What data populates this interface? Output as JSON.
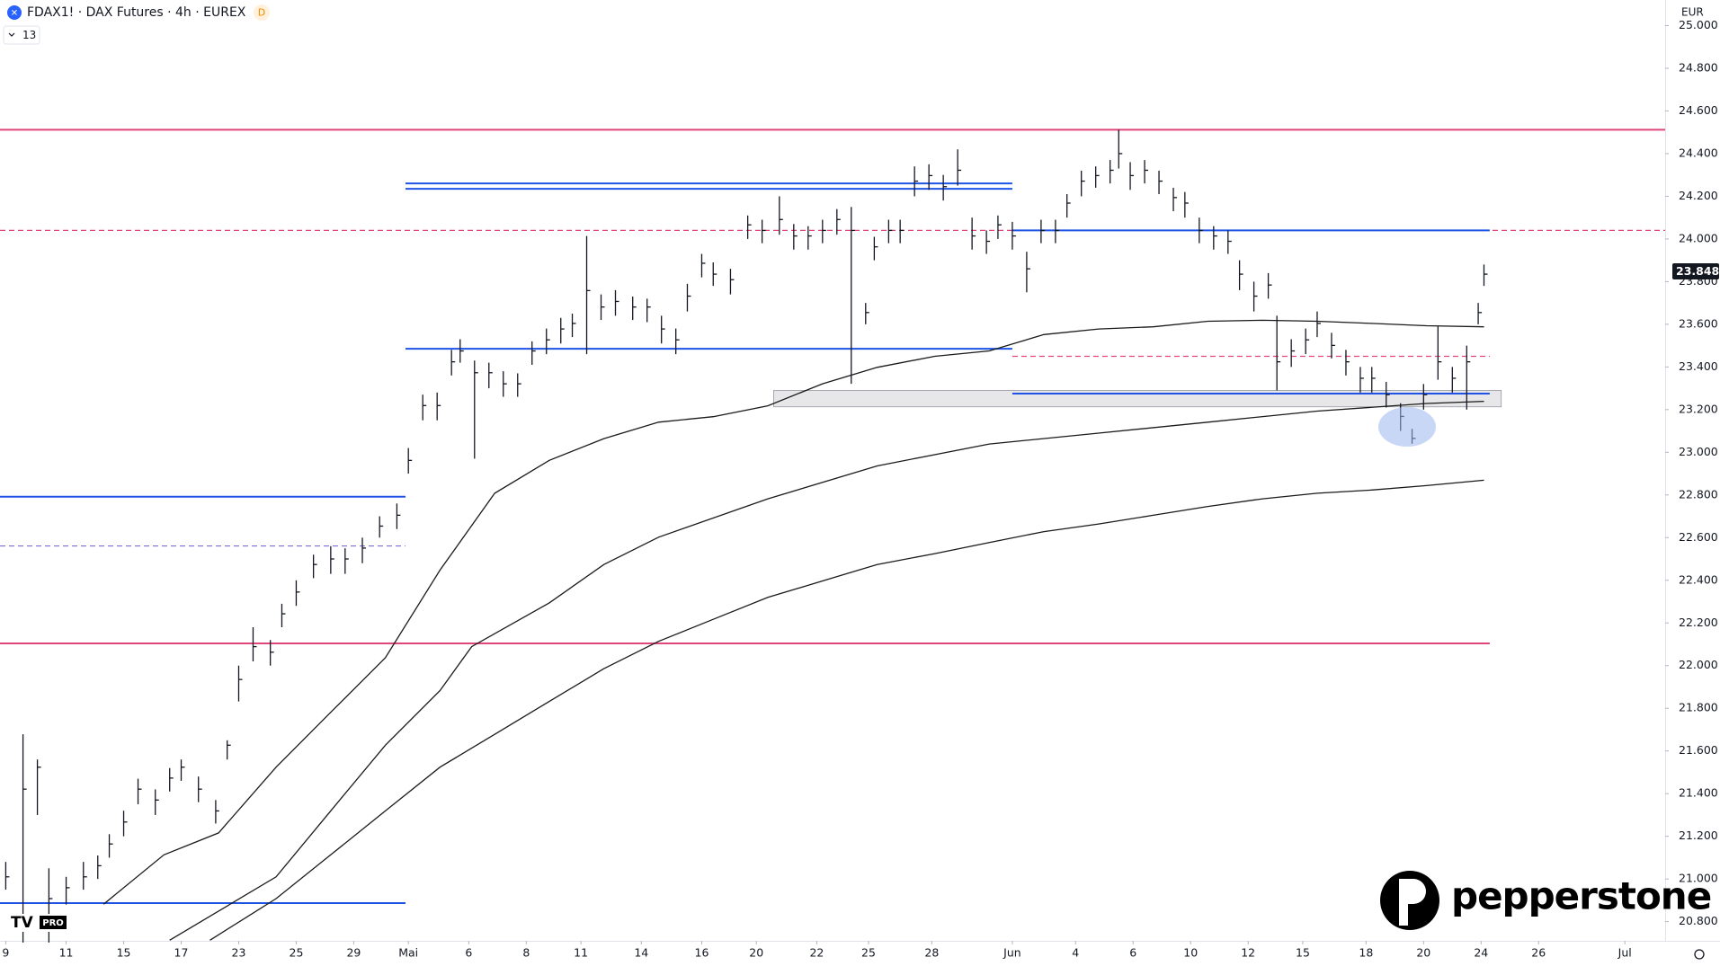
{
  "chart_data": {
    "type": "ohlc",
    "title": "FDAX1! · DAX Futures · 4h · EUREX",
    "interval_badge": "D",
    "indicator_count": 13,
    "currency": "EUR",
    "watermark": "pepperstone",
    "badge": "PRO",
    "grid": false,
    "last_price": {
      "value": 23848,
      "label": "23.848"
    },
    "ylim": [
      20710,
      25120
    ],
    "yticks": [
      {
        "value": 20800,
        "label": "20.800"
      },
      {
        "value": 21000,
        "label": "21.000"
      },
      {
        "value": 21200,
        "label": "21.200"
      },
      {
        "value": 21400,
        "label": "21.400"
      },
      {
        "value": 21600,
        "label": "21.600"
      },
      {
        "value": 21800,
        "label": "21.800"
      },
      {
        "value": 22000,
        "label": "22.000"
      },
      {
        "value": 22200,
        "label": "22.200"
      },
      {
        "value": 22400,
        "label": "22.400"
      },
      {
        "value": 22600,
        "label": "22.600"
      },
      {
        "value": 22800,
        "label": "22.800"
      },
      {
        "value": 23000,
        "label": "23.000"
      },
      {
        "value": 23200,
        "label": "23.200"
      },
      {
        "value": 23400,
        "label": "23.400"
      },
      {
        "value": 23600,
        "label": "23.600"
      },
      {
        "value": 23800,
        "label": "23.800"
      },
      {
        "value": 24000,
        "label": "24.000"
      },
      {
        "value": 24200,
        "label": "24.200"
      },
      {
        "value": 24400,
        "label": "24.400"
      },
      {
        "value": 24600,
        "label": "24.600"
      },
      {
        "value": 24800,
        "label": "24.800"
      },
      {
        "value": 25000,
        "label": "25.000"
      }
    ],
    "xlim": [
      -0.2,
      57.7
    ],
    "xticks": [
      {
        "value": 0,
        "label": "9"
      },
      {
        "value": 2.1,
        "label": "11"
      },
      {
        "value": 4.1,
        "label": "15"
      },
      {
        "value": 6.1,
        "label": "17"
      },
      {
        "value": 8.1,
        "label": "23"
      },
      {
        "value": 10.1,
        "label": "25"
      },
      {
        "value": 12.1,
        "label": "29"
      },
      {
        "value": 14,
        "label": "Mai"
      },
      {
        "value": 16.1,
        "label": "6"
      },
      {
        "value": 18.1,
        "label": "8"
      },
      {
        "value": 20,
        "label": "11"
      },
      {
        "value": 22.1,
        "label": "14"
      },
      {
        "value": 24.2,
        "label": "16"
      },
      {
        "value": 26.1,
        "label": "20"
      },
      {
        "value": 28.2,
        "label": "22"
      },
      {
        "value": 30,
        "label": "25"
      },
      {
        "value": 32.2,
        "label": "28"
      },
      {
        "value": 35,
        "label": "Jun"
      },
      {
        "value": 37.2,
        "label": "4"
      },
      {
        "value": 39.2,
        "label": "6"
      },
      {
        "value": 41.2,
        "label": "10"
      },
      {
        "value": 43.2,
        "label": "12"
      },
      {
        "value": 45.1,
        "label": "15"
      },
      {
        "value": 47.3,
        "label": "18"
      },
      {
        "value": 49.3,
        "label": "20"
      },
      {
        "value": 51.3,
        "label": "24"
      },
      {
        "value": 53.3,
        "label": "26"
      },
      {
        "value": 56.3,
        "label": "Jul"
      }
    ],
    "color": "#131722",
    "x": [
      0,
      0.6,
      1.1,
      1.5,
      2.1,
      2.7,
      3.2,
      3.6,
      4.1,
      4.6,
      5.2,
      5.7,
      6.1,
      6.7,
      7.3,
      7.7,
      8.1,
      8.6,
      9.2,
      9.6,
      10.1,
      10.7,
      11.3,
      11.8,
      12.4,
      13,
      13.6,
      14,
      14.5,
      15,
      15.5,
      15.8,
      16.3,
      16.8,
      17.3,
      17.8,
      18.3,
      18.8,
      19.3,
      19.7,
      20.2,
      20.7,
      21.2,
      21.8,
      22.3,
      22.8,
      23.3,
      23.7,
      24.2,
      24.6,
      25.2,
      25.8,
      26.3,
      26.9,
      27.4,
      27.9,
      28.4,
      28.9,
      29.4,
      29.9,
      30.2,
      30.7,
      31.1,
      31.6,
      32.1,
      32.6,
      33.1,
      33.6,
      34.1,
      34.5,
      35,
      35.5,
      36,
      36.5,
      36.9,
      37.4,
      37.9,
      38.4,
      38.7,
      39.1,
      39.6,
      40.1,
      40.6,
      41,
      41.5,
      42,
      42.5,
      42.9,
      43.4,
      43.9,
      44.2,
      44.7,
      45.2,
      45.6,
      46.1,
      46.6,
      47.1,
      47.5,
      48,
      48.5,
      48.9,
      49.3,
      49.8,
      50.3,
      50.8,
      51.2,
      51.4
    ],
    "high": [
      21080,
      21678,
      21560,
      21050,
      21010,
      21080,
      21110,
      21210,
      21320,
      21470,
      21420,
      21520,
      21560,
      21480,
      21370,
      21650,
      22000,
      22180,
      22120,
      22290,
      22400,
      22520,
      22560,
      22550,
      22600,
      22700,
      22760,
      23020,
      23270,
      23280,
      23480,
      23530,
      23430,
      23420,
      23380,
      23370,
      23520,
      23580,
      23630,
      23650,
      24014,
      23740,
      23760,
      23730,
      23720,
      23640,
      23580,
      23790,
      23930,
      23890,
      23860,
      24110,
      24090,
      24200,
      24070,
      24060,
      24090,
      24140,
      24150,
      23700,
      24010,
      24090,
      24090,
      24340,
      24350,
      24300,
      24420,
      24100,
      24040,
      24110,
      24080,
      23940,
      24090,
      24090,
      24210,
      24320,
      24340,
      24370,
      24512,
      24360,
      24370,
      24320,
      24240,
      24220,
      24100,
      24060,
      24040,
      23900,
      23800,
      23840,
      23640,
      23530,
      23580,
      23660,
      23560,
      23480,
      23400,
      23400,
      23330,
      23230,
      23110,
      23320,
      23590,
      23400,
      23500,
      23700,
      23880
    ],
    "low": [
      20950,
      20702,
      21300,
      20702,
      20880,
      20950,
      21000,
      21100,
      21200,
      21350,
      21300,
      21410,
      21460,
      21360,
      21260,
      21560,
      21832,
      22020,
      22000,
      22180,
      22280,
      22410,
      22430,
      22430,
      22480,
      22600,
      22640,
      22900,
      23150,
      23150,
      23360,
      23420,
      22970,
      23300,
      23260,
      23260,
      23410,
      23460,
      23510,
      23540,
      23460,
      23620,
      23640,
      23620,
      23610,
      23510,
      23460,
      23660,
      23820,
      23780,
      23740,
      24000,
      23980,
      24020,
      23950,
      23950,
      23980,
      24020,
      23321,
      23600,
      23900,
      23980,
      23980,
      24200,
      24230,
      24180,
      24250,
      23950,
      23930,
      24000,
      23950,
      23750,
      23980,
      23980,
      24100,
      24200,
      24240,
      24260,
      24330,
      24230,
      24260,
      24210,
      24130,
      24100,
      23980,
      23950,
      23930,
      23760,
      23660,
      23720,
      23290,
      23400,
      23460,
      23540,
      23440,
      23360,
      23280,
      23280,
      23210,
      23100,
      23040,
      23200,
      23340,
      23280,
      23200,
      23600,
      23780
    ],
    "close": [
      21010,
      21421,
      21524,
      20908,
      20959,
      21010,
      21062,
      21164,
      21267,
      21421,
      21370,
      21473,
      21524,
      21421,
      21319,
      21627,
      21935,
      22089,
      22063,
      22243,
      22345,
      22474,
      22500,
      22500,
      22551,
      22654,
      22705,
      22962,
      23219,
      23219,
      23424,
      23475,
      23373,
      23373,
      23321,
      23321,
      23475,
      23527,
      23578,
      23604,
      23758,
      23681,
      23707,
      23681,
      23681,
      23578,
      23527,
      23732,
      23886,
      23835,
      23809,
      24066,
      24040,
      24091,
      24014,
      24014,
      24040,
      24091,
      24040,
      23655,
      23963,
      24040,
      24040,
      24271,
      24297,
      24245,
      24322,
      24014,
      23989,
      24066,
      24014,
      23860,
      24040,
      24040,
      24168,
      24271,
      24297,
      24322,
      24400,
      24297,
      24322,
      24271,
      24194,
      24168,
      24040,
      24014,
      23989,
      23835,
      23732,
      23784,
      23424,
      23475,
      23527,
      23604,
      23501,
      23424,
      23347,
      23347,
      23270,
      23168,
      23065,
      23270,
      23424,
      23347,
      23424,
      23655,
      23835
    ],
    "moving_averages": [
      {
        "color": "#1a1a1a",
        "x": [
          3.4,
          5.5,
          7.4,
          9.4,
          11.3,
          13.2,
          15.1,
          17,
          18.9,
          20.8,
          22.7,
          24.6,
          26.5,
          28.4,
          30.3,
          32.3,
          34.2,
          36.1,
          38,
          39.9,
          41.8,
          43.7,
          45.6,
          47.5,
          49.4,
          51.4
        ],
        "values": [
          20882,
          21113,
          21216,
          21524,
          21781,
          22037,
          22448,
          22808,
          22962,
          23064,
          23141,
          23167,
          23218,
          23321,
          23398,
          23450,
          23475,
          23552,
          23578,
          23588,
          23614,
          23619,
          23614,
          23604,
          23593,
          23588
        ]
      },
      {
        "color": "#1a1a1a",
        "x": [
          5.7,
          9.4,
          11.3,
          13.2,
          15.1,
          16.2,
          18.9,
          20.8,
          22.7,
          26.5,
          30.3,
          34.2,
          38,
          41.8,
          45.6,
          49.4,
          51.4
        ],
        "values": [
          20713,
          21010,
          21319,
          21627,
          21883,
          22089,
          22294,
          22474,
          22602,
          22782,
          22936,
          23039,
          23090,
          23141,
          23193,
          23229,
          23239
        ]
      },
      {
        "color": "#1a1a1a",
        "x": [
          7.1,
          9.4,
          11.3,
          13.2,
          15.1,
          17,
          18.9,
          20.8,
          22.7,
          24.6,
          26.5,
          28.4,
          30.3,
          32.3,
          34.2,
          36.1,
          38,
          39.9,
          41.8,
          43.7,
          45.6,
          47.5,
          49.4,
          51.4
        ],
        "values": [
          20713,
          20908,
          21113,
          21319,
          21524,
          21678,
          21832,
          21986,
          22114,
          22217,
          22320,
          22397,
          22474,
          22525,
          22577,
          22628,
          22664,
          22705,
          22746,
          22782,
          22808,
          22823,
          22844,
          22869
        ]
      }
    ],
    "levels": [
      {
        "value": 24512,
        "x": [
          -0.2,
          57.7
        ],
        "color": "#e0457b",
        "dashed": false
      },
      {
        "value": 24040,
        "x": [
          -0.2,
          57.7
        ],
        "color": "#e0457b",
        "dashed": true
      },
      {
        "value": 24260,
        "x": [
          13.9,
          35
        ],
        "color": "#1e53e5",
        "dashed": false
      },
      {
        "value": 24235,
        "x": [
          13.9,
          35
        ],
        "color": "#1e53e5",
        "dashed": false
      },
      {
        "value": 24040,
        "x": [
          35,
          51.6
        ],
        "color": "#1e53e5",
        "dashed": false
      },
      {
        "value": 23485,
        "x": [
          13.9,
          35
        ],
        "color": "#1e53e5",
        "dashed": false
      },
      {
        "value": 23450,
        "x": [
          35,
          51.6
        ],
        "color": "#e0457b",
        "dashed": true
      },
      {
        "value": 23275,
        "x": [
          35,
          51.6
        ],
        "color": "#1e53e5",
        "dashed": false
      },
      {
        "value": 22792,
        "x": [
          -0.2,
          13.9
        ],
        "color": "#1e53e5",
        "dashed": false
      },
      {
        "value": 22561,
        "x": [
          -0.2,
          13.9
        ],
        "color": "#7a6fd0",
        "dashed": true
      },
      {
        "value": 22104,
        "x": [
          -0.2,
          51.6
        ],
        "color": "#e0457b",
        "dashed": false
      },
      {
        "value": 20887,
        "x": [
          -0.2,
          13.9
        ],
        "color": "#1e53e5",
        "dashed": false
      }
    ],
    "zone": {
      "x": [
        26.7,
        52
      ],
      "y": [
        23213,
        23290
      ]
    }
  }
}
